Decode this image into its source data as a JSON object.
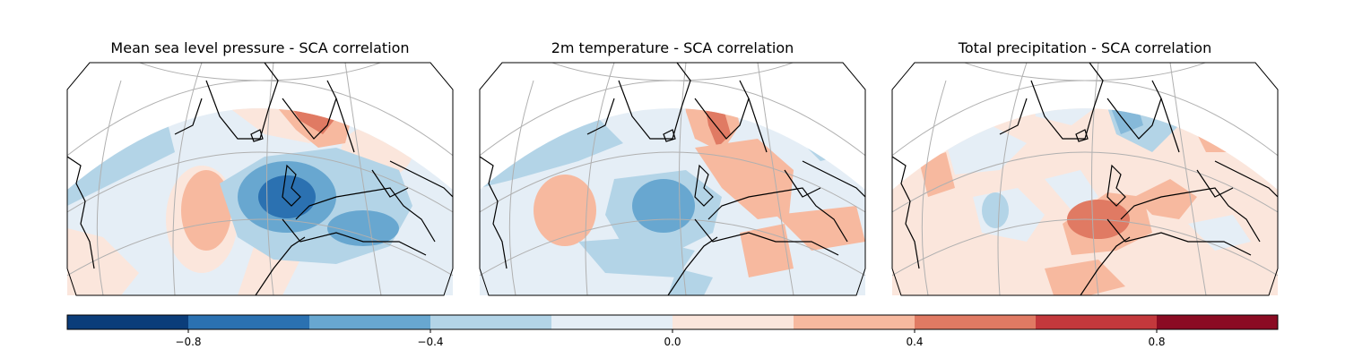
{
  "panels": [
    {
      "title": "Mean sea level pressure - SCA correlation"
    },
    {
      "title": "2m temperature - SCA correlation"
    },
    {
      "title": "Total precipitation - SCA correlation"
    }
  ],
  "colorbar": {
    "levels": [
      -1.0,
      -0.8,
      -0.6,
      -0.4,
      -0.2,
      0.0,
      0.2,
      0.4,
      0.6,
      0.8,
      1.0
    ],
    "colors": [
      "#0b3d7a",
      "#2b71b1",
      "#68a7d0",
      "#b3d4e7",
      "#e5eef6",
      "#fbe6dc",
      "#f7b99f",
      "#e07a63",
      "#c3383c",
      "#8b0b23"
    ],
    "ticks": [
      {
        "value": -0.8,
        "label": "−0.8"
      },
      {
        "value": -0.4,
        "label": "−0.4"
      },
      {
        "value": 0.0,
        "label": "0.0"
      },
      {
        "value": 0.4,
        "label": "0.4"
      },
      {
        "value": 0.8,
        "label": "0.8"
      }
    ]
  },
  "colors": {
    "land_outline": "#000000",
    "gridline": "#b0b0b0",
    "frame": "#000000"
  }
}
